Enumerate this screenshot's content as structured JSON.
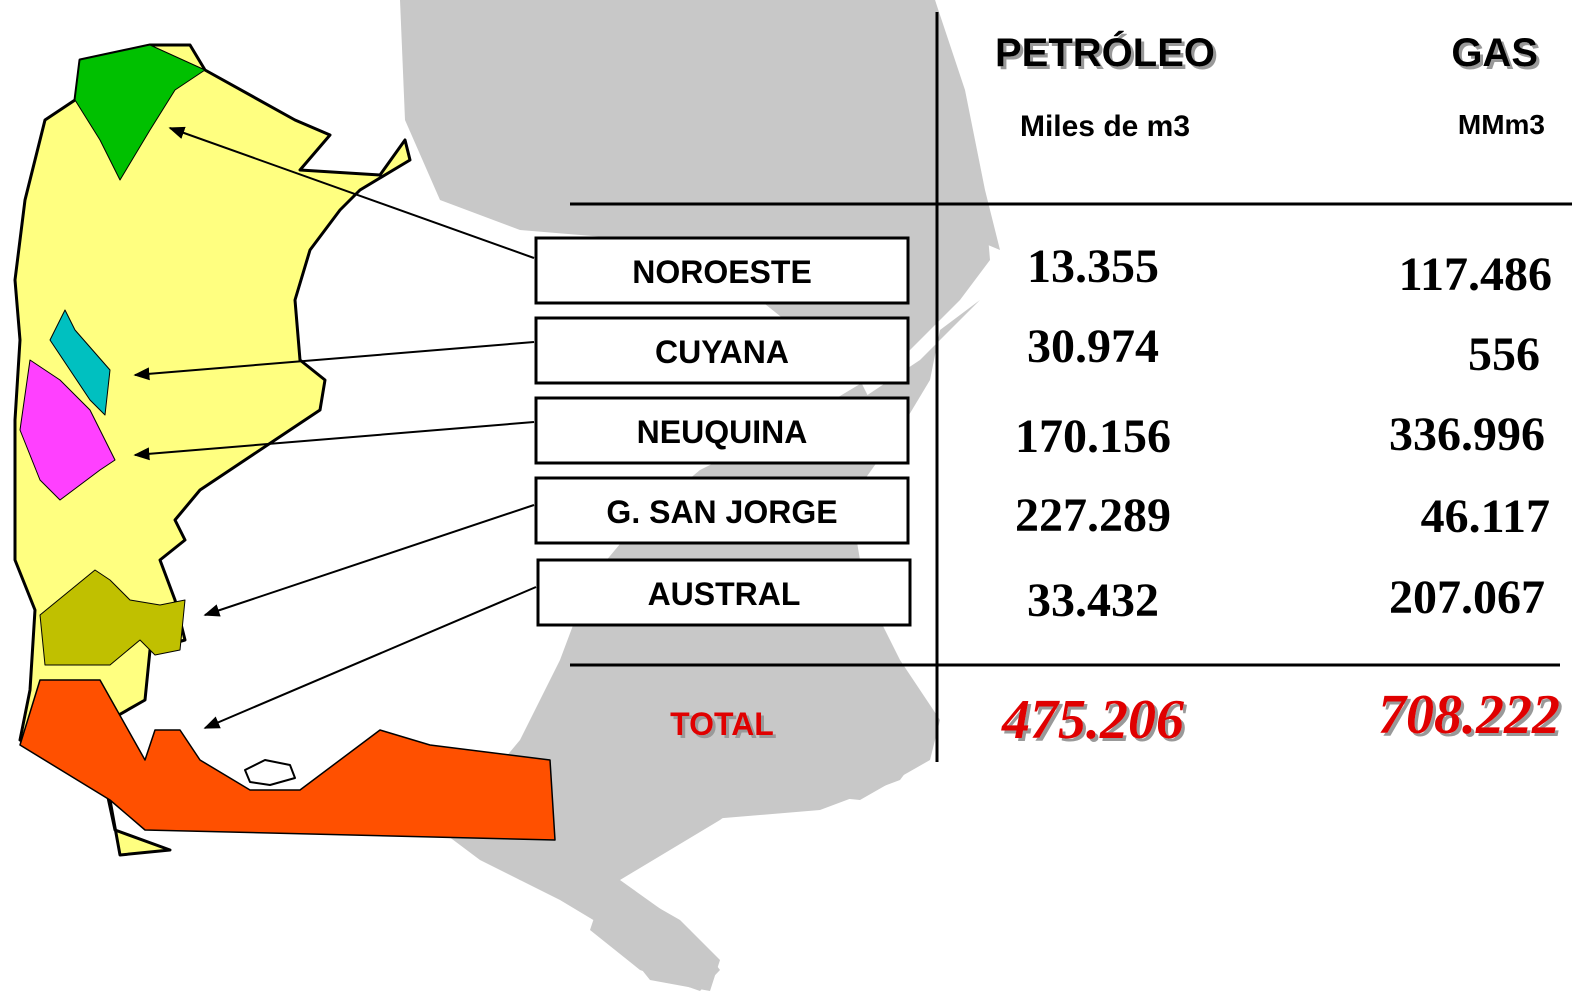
{
  "table": {
    "header": {
      "oil": "PETRÓLEO",
      "oil_unit": "Miles de m3",
      "gas": "GAS",
      "gas_unit": "MMm3"
    },
    "rows": [
      {
        "basin": "NOROESTE",
        "oil": "13.355",
        "gas": "117.486"
      },
      {
        "basin": "CUYANA",
        "oil": "30.974",
        "gas": "556"
      },
      {
        "basin": "NEUQUINA",
        "oil": "170.156",
        "gas": "336.996"
      },
      {
        "basin": "G. SAN JORGE",
        "oil": "227.289",
        "gas": "46.117"
      },
      {
        "basin": "AUSTRAL",
        "oil": "33.432",
        "gas": "207.067"
      }
    ],
    "total": {
      "label": "TOTAL",
      "oil": "475.206",
      "gas": "708.222"
    }
  }
}
